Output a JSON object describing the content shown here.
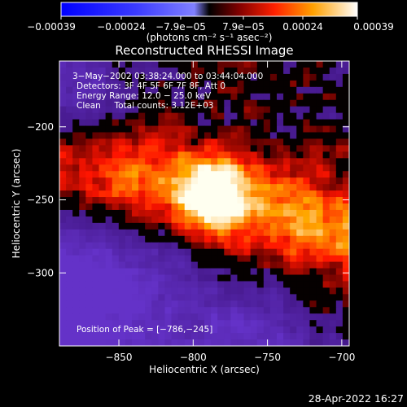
{
  "chart_data": {
    "type": "heatmap",
    "title": "Reconstructed RHESSI Image",
    "xlabel": "Heliocentric X (arcsec)",
    "ylabel": "Heliocentric Y (arcsec)",
    "xlim": [
      -890,
      -695
    ],
    "ylim": [
      -350,
      -155
    ],
    "xticks": [
      -850,
      -800,
      -750,
      -700
    ],
    "yticks": [
      -200,
      -250,
      -300
    ],
    "xtick_labels": [
      "−850",
      "−800",
      "−750",
      "−700"
    ],
    "ytick_labels": [
      "−200",
      "−250",
      "−300"
    ],
    "colorbar": {
      "range": [
        -0.00039,
        0.00039
      ],
      "tick_labels": [
        "−0.00039",
        "−0.00024",
        "−7.9e−05",
        "7.9e−05",
        "0.00024",
        "0.00039"
      ],
      "units": "(photons cm⁻² s⁻¹ asec⁻²)"
    },
    "peak": {
      "x": -786,
      "y": -245
    },
    "annotations": [
      "3−May−2002 03:38:24.000 to 03:44:04.000",
      "Detectors: 3F 4F 5F 6F 7F 8F, Att 0",
      "Energy Range: 12.0 − 25.0 keV",
      "Clean     Total counts: 3.12E+03"
    ],
    "peak_label": "Position of Peak = [−786,−245]",
    "colors": {
      "negative": "#5a2fb0",
      "background": "#000000",
      "low": "#8a1010",
      "mid": "#ff5a00",
      "high": "#ffffe0"
    }
  },
  "footer": {
    "timestamp": "28-Apr-2022 16:27"
  }
}
